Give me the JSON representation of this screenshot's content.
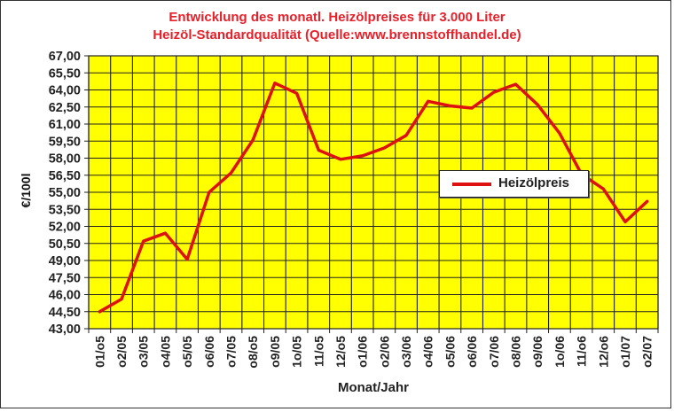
{
  "header": {
    "title_line1": "Entwicklung des monatl. Heizölpreises für 3.000 Liter",
    "title_line2": "Heizöl-Standardqualität (Quelle:www.brennstoffhandel.de)"
  },
  "colors": {
    "title": "#e8202a",
    "plot_background": "#ffff00",
    "grid": "#222222",
    "series": "#dd1111"
  },
  "chart_data": {
    "type": "line",
    "title": "Entwicklung des monatl. Heizölpreises für 3.000 Liter Heizöl-Standardqualität (Quelle:www.brennstoffhandel.de)",
    "xlabel": "Monat/Jahr",
    "ylabel": "€/100l",
    "ylim": [
      43.0,
      67.0
    ],
    "y_ticks": [
      "43,00",
      "44,50",
      "46,00",
      "47,50",
      "49,00",
      "50,50",
      "52,00",
      "53,50",
      "55,00",
      "56,50",
      "58,00",
      "59,50",
      "61,00",
      "62,50",
      "64,00",
      "65,50",
      "67,00"
    ],
    "grid": true,
    "legend_position": "inside-right",
    "categories": [
      "01/o5",
      "o2/05",
      "o3/05",
      "o4/05",
      "o5/05",
      "o6/06",
      "o7/05",
      "o8/o5",
      "o9/05",
      "1o/05",
      "11/o5",
      "12/o5",
      "o1/06",
      "o2/06",
      "o3/06",
      "o4/06",
      "o5/06",
      "o6/06",
      "o7/06",
      "o8/06",
      "o9/06",
      "1o/06",
      "11/o6",
      "12/o6",
      "o1/07",
      "o2/07"
    ],
    "series": [
      {
        "name": "Heizölpreis",
        "values": [
          44.5,
          45.6,
          50.7,
          51.4,
          49.1,
          55.0,
          56.7,
          59.6,
          64.6,
          63.7,
          58.7,
          57.9,
          58.2,
          58.9,
          60.0,
          63.0,
          62.6,
          62.4,
          63.8,
          64.5,
          62.7,
          60.2,
          56.6,
          55.3,
          52.4,
          54.2
        ]
      }
    ]
  },
  "legend": {
    "label": "Heizölpreis"
  },
  "axes": {
    "xlabel": "Monat/Jahr",
    "ylabel": "€/100l"
  }
}
